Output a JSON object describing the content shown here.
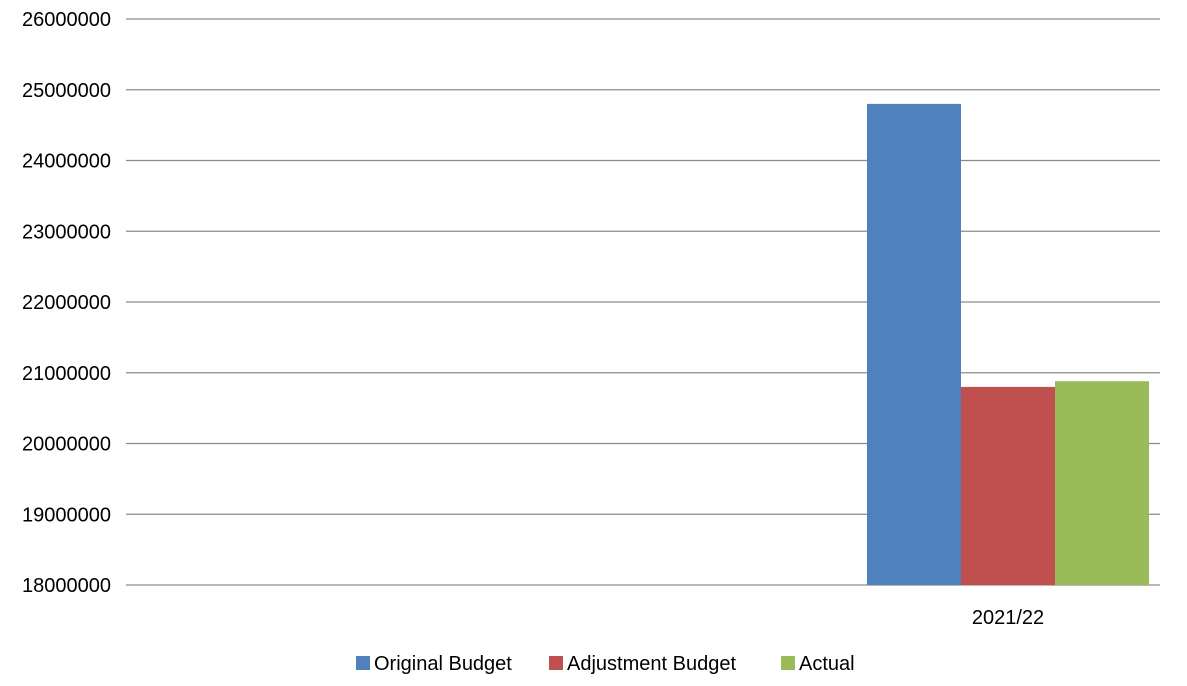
{
  "chart_data": {
    "type": "bar",
    "title": "",
    "xlabel": "",
    "ylabel": "",
    "ylim": [
      18000000,
      26000000
    ],
    "yticks": [
      26000000,
      25000000,
      24000000,
      23000000,
      22000000,
      21000000,
      20000000,
      19000000,
      18000000
    ],
    "grid": true,
    "legend_position": "bottom",
    "categories": [
      "2021/22"
    ],
    "series": [
      {
        "name": "Original Budget",
        "color": "#4f81bd",
        "values": [
          24800000
        ]
      },
      {
        "name": "Adjustment Budget",
        "color": "#c0504d",
        "values": [
          20800000
        ]
      },
      {
        "name": "Actual",
        "color": "#9bbb59",
        "values": [
          20880000
        ]
      }
    ]
  }
}
